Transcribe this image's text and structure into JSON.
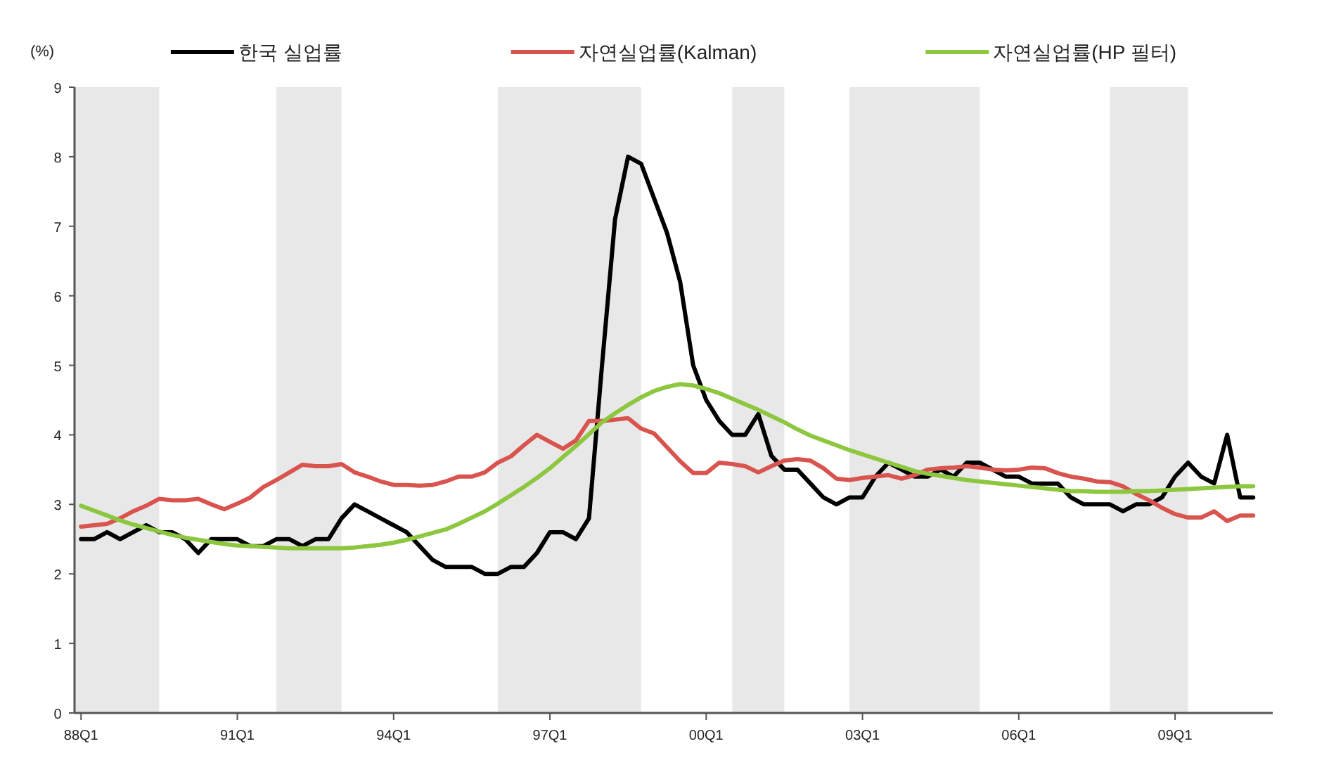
{
  "chart_data": {
    "type": "line",
    "ylabel": "(%)",
    "legend": "top",
    "marker": "none",
    "line_style": "solid",
    "grid": false,
    "ylim": [
      0,
      9
    ],
    "yticks": [
      0,
      1,
      2,
      3,
      4,
      5,
      6,
      7,
      8,
      9
    ],
    "categories": [
      "88Q1",
      null,
      null,
      null,
      null,
      null,
      null,
      null,
      null,
      null,
      null,
      null,
      "91Q1",
      null,
      null,
      null,
      null,
      null,
      null,
      null,
      null,
      null,
      null,
      null,
      "94Q1",
      null,
      null,
      null,
      null,
      null,
      null,
      null,
      null,
      null,
      null,
      null,
      "97Q1",
      null,
      null,
      null,
      null,
      null,
      null,
      null,
      null,
      null,
      null,
      null,
      "00Q1",
      null,
      null,
      null,
      null,
      null,
      null,
      null,
      null,
      null,
      null,
      null,
      "03Q1",
      null,
      null,
      null,
      null,
      null,
      null,
      null,
      null,
      null,
      null,
      null,
      "06Q1",
      null,
      null,
      null,
      null,
      null,
      null,
      null,
      null,
      null,
      null,
      null,
      "09Q1",
      null,
      null,
      null,
      null,
      null,
      null
    ],
    "series": [
      {
        "name": "한국 실업률",
        "color": "#000000",
        "values": [
          2.5,
          2.5,
          2.6,
          2.5,
          2.6,
          2.7,
          2.6,
          2.6,
          2.5,
          2.3,
          2.5,
          2.5,
          2.5,
          2.4,
          2.4,
          2.5,
          2.5,
          2.4,
          2.5,
          2.5,
          2.8,
          3.0,
          2.9,
          2.8,
          2.7,
          2.6,
          2.4,
          2.2,
          2.1,
          2.1,
          2.1,
          2.0,
          2.0,
          2.1,
          2.1,
          2.3,
          2.6,
          2.6,
          2.5,
          2.8,
          5.0,
          7.1,
          8.0,
          7.9,
          7.4,
          6.9,
          6.2,
          5.0,
          4.5,
          4.2,
          4.0,
          4.0,
          4.3,
          3.7,
          3.5,
          3.5,
          3.3,
          3.1,
          3.0,
          3.1,
          3.1,
          3.4,
          3.6,
          3.5,
          3.4,
          3.4,
          3.5,
          3.4,
          3.6,
          3.6,
          3.5,
          3.4,
          3.4,
          3.3,
          3.3,
          3.3,
          3.1,
          3.0,
          3.0,
          3.0,
          2.9,
          3.0,
          3.0,
          3.1,
          3.4,
          3.6,
          3.4,
          3.3,
          4.0,
          3.1,
          3.1
        ]
      },
      {
        "name": "자연실업률(Kalman)",
        "color": "#d9534f",
        "values": [
          2.68,
          2.7,
          2.72,
          2.8,
          2.9,
          2.98,
          3.08,
          3.06,
          3.06,
          3.08,
          3.0,
          2.93,
          3.01,
          3.1,
          3.25,
          3.35,
          3.46,
          3.57,
          3.55,
          3.55,
          3.58,
          3.46,
          3.4,
          3.33,
          3.28,
          3.28,
          3.27,
          3.28,
          3.33,
          3.4,
          3.4,
          3.46,
          3.6,
          3.69,
          3.85,
          4.0,
          3.9,
          3.8,
          3.92,
          4.2,
          4.2,
          4.22,
          4.24,
          4.09,
          4.02,
          3.82,
          3.62,
          3.45,
          3.45,
          3.6,
          3.58,
          3.55,
          3.46,
          3.55,
          3.63,
          3.65,
          3.63,
          3.52,
          3.37,
          3.35,
          3.38,
          3.4,
          3.42,
          3.37,
          3.42,
          3.5,
          3.52,
          3.53,
          3.55,
          3.53,
          3.5,
          3.49,
          3.5,
          3.53,
          3.52,
          3.45,
          3.4,
          3.37,
          3.33,
          3.32,
          3.26,
          3.15,
          3.06,
          2.95,
          2.86,
          2.81,
          2.81,
          2.9,
          2.76,
          2.84,
          2.84
        ]
      },
      {
        "name": "자연실업률(HP 필터)",
        "color": "#8dc63f",
        "values": [
          2.98,
          2.91,
          2.84,
          2.77,
          2.71,
          2.66,
          2.61,
          2.56,
          2.52,
          2.49,
          2.46,
          2.43,
          2.41,
          2.4,
          2.39,
          2.38,
          2.37,
          2.37,
          2.37,
          2.37,
          2.37,
          2.38,
          2.4,
          2.42,
          2.45,
          2.49,
          2.54,
          2.59,
          2.64,
          2.72,
          2.81,
          2.9,
          3.01,
          3.13,
          3.25,
          3.38,
          3.52,
          3.68,
          3.84,
          4.01,
          4.18,
          4.31,
          4.43,
          4.54,
          4.63,
          4.69,
          4.73,
          4.71,
          4.66,
          4.6,
          4.52,
          4.44,
          4.36,
          4.27,
          4.18,
          4.08,
          3.99,
          3.92,
          3.85,
          3.78,
          3.72,
          3.66,
          3.6,
          3.54,
          3.48,
          3.44,
          3.41,
          3.38,
          3.35,
          3.33,
          3.31,
          3.29,
          3.27,
          3.25,
          3.23,
          3.21,
          3.19,
          3.19,
          3.18,
          3.18,
          3.18,
          3.19,
          3.19,
          3.2,
          3.21,
          3.22,
          3.23,
          3.24,
          3.25,
          3.26,
          3.26
        ]
      }
    ]
  }
}
